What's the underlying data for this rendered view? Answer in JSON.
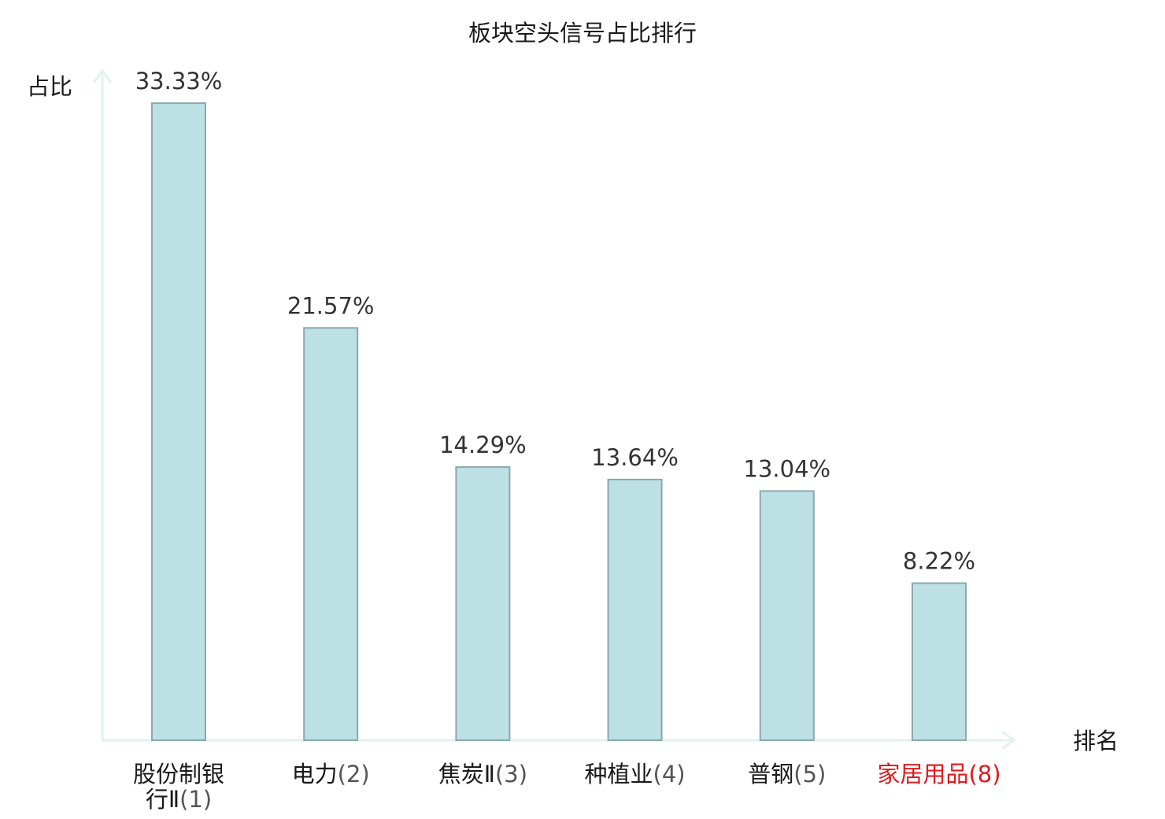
{
  "colors": {
    "bar_fill": "#bce0e3",
    "bar_stroke": "#8aa9ab",
    "axis": "#e2f2ef",
    "highlight": "#e0191e"
  },
  "chart_data": {
    "type": "bar",
    "title": "板块空头信号占比排行",
    "xlabel": "排名",
    "ylabel": "占比",
    "ylim": [
      0,
      35
    ],
    "grid": false,
    "categories": [
      {
        "name": "股份制银行Ⅱ",
        "rank": "(1)",
        "highlight": false
      },
      {
        "name": "电力",
        "rank": "(2)",
        "highlight": false
      },
      {
        "name": "焦炭Ⅱ",
        "rank": "(3)",
        "highlight": false
      },
      {
        "name": "种植业",
        "rank": "(4)",
        "highlight": false
      },
      {
        "name": "普钢",
        "rank": "(5)",
        "highlight": false
      },
      {
        "name": "家居用品",
        "rank": "(8)",
        "highlight": true
      }
    ],
    "values": [
      33.33,
      21.57,
      14.29,
      13.64,
      13.04,
      8.22
    ],
    "value_labels": [
      "33.33%",
      "21.57%",
      "14.29%",
      "13.64%",
      "13.04%",
      "8.22%"
    ]
  }
}
